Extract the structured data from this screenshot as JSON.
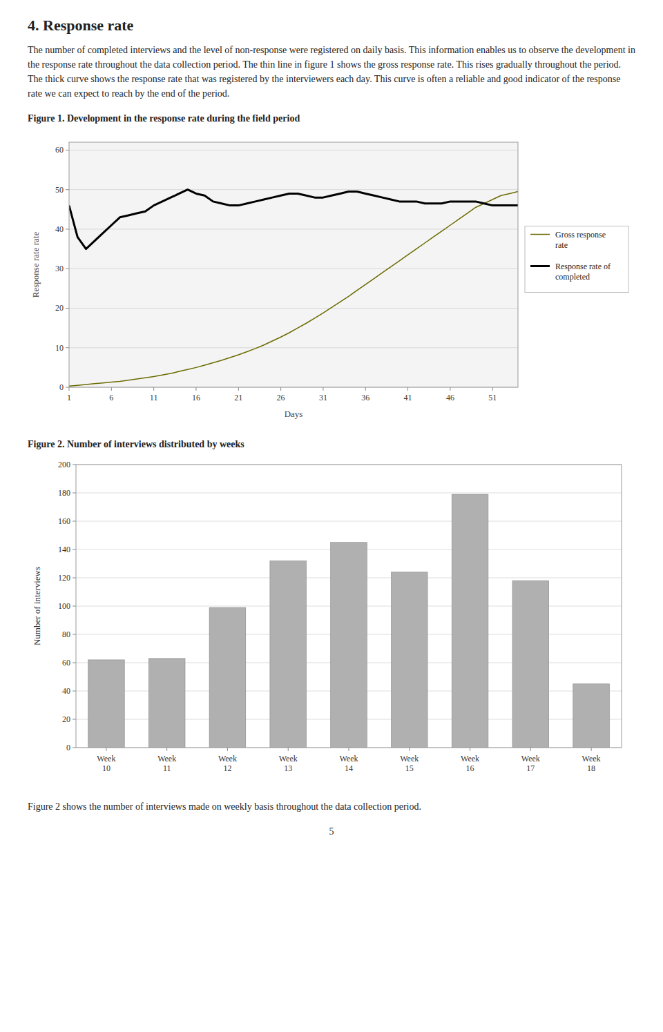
{
  "title": "4. Response rate",
  "paragraphs": [
    "The number of completed interviews and the level of non-response were registered on daily basis. This information enables us to observe the development in the response rate throughout the data collection period. The thin line in figure 1 shows the gross response rate. This rises gradually throughout the period. The thick curve shows the response rate that was registered by the interviewers each day. This curve is often a reliable and good indicator of the response rate we can expect to reach by the end of the period.",
    "Figure 2 shows the number of interviews made on weekly basis throughout the data collection period."
  ],
  "page_number": "5",
  "chart_data": [
    {
      "type": "line",
      "title": "Figure 1. Development in the response rate during the field period",
      "x_label": "Days",
      "y_label": "Response rate rate",
      "x": [
        1,
        2,
        3,
        4,
        5,
        6,
        7,
        8,
        9,
        10,
        11,
        12,
        13,
        14,
        15,
        16,
        17,
        18,
        19,
        20,
        21,
        22,
        23,
        24,
        25,
        26,
        27,
        28,
        29,
        30,
        31,
        32,
        33,
        34,
        35,
        36,
        37,
        38,
        39,
        40,
        41,
        42,
        43,
        44,
        45,
        46,
        47,
        48,
        49,
        50,
        51,
        52,
        53,
        54
      ],
      "series": [
        {
          "name": "Gross response\nrate",
          "color": "#6b6b00",
          "line_style": "thin",
          "values": [
            0.3,
            0.5,
            0.7,
            0.9,
            1.1,
            1.3,
            1.5,
            1.8,
            2.1,
            2.4,
            2.7,
            3.1,
            3.5,
            4.0,
            4.5,
            5.0,
            5.6,
            6.2,
            6.8,
            7.5,
            8.2,
            9.0,
            9.8,
            10.7,
            11.7,
            12.7,
            13.8,
            15.0,
            16.2,
            17.5,
            18.8,
            20.2,
            21.6,
            23.0,
            24.5,
            26.0,
            27.5,
            29.0,
            30.5,
            32.0,
            33.5,
            35.0,
            36.5,
            38.0,
            39.5,
            41.0,
            42.5,
            44.0,
            45.5,
            46.5,
            47.5,
            48.5,
            49.0,
            49.5
          ]
        },
        {
          "name": "Response rate of\ncompleted",
          "color": "#000000",
          "line_style": "thick",
          "values": [
            46,
            38,
            35,
            37,
            39,
            41,
            43,
            43.5,
            44,
            44.5,
            46,
            47,
            48,
            49,
            50,
            49,
            48.5,
            47,
            46.5,
            46,
            46,
            46.5,
            47,
            47.5,
            48,
            48.5,
            49,
            49,
            48.5,
            48,
            48,
            48.5,
            49,
            49.5,
            49.5,
            49,
            48.5,
            48,
            47.5,
            47,
            47,
            47,
            46.5,
            46.5,
            46.5,
            47,
            47,
            47,
            47,
            46.5,
            46,
            46,
            46,
            46
          ]
        }
      ],
      "xlim": [
        1,
        54
      ],
      "xticks": [
        1,
        6,
        11,
        16,
        21,
        26,
        31,
        36,
        41,
        46,
        51
      ],
      "ylim": [
        0,
        62
      ],
      "yticks": [
        0,
        10,
        20,
        30,
        40,
        50,
        60
      ],
      "grid": true,
      "legend": "right"
    },
    {
      "type": "bar",
      "title": "Figure 2. Number of interviews distributed by weeks",
      "y_label": "Number of interviews",
      "categories": [
        "Week\n10",
        "Week\n11",
        "Week\n12",
        "Week\n13",
        "Week\n14",
        "Week\n15",
        "Week\n16",
        "Week\n17",
        "Week\n18"
      ],
      "values": [
        62,
        63,
        99,
        132,
        145,
        124,
        179,
        118,
        45
      ],
      "color": "#b0b0b0",
      "ylim": [
        0,
        200
      ],
      "yticks": [
        0,
        20,
        40,
        60,
        80,
        100,
        120,
        140,
        160,
        180,
        200
      ],
      "grid": true
    }
  ]
}
